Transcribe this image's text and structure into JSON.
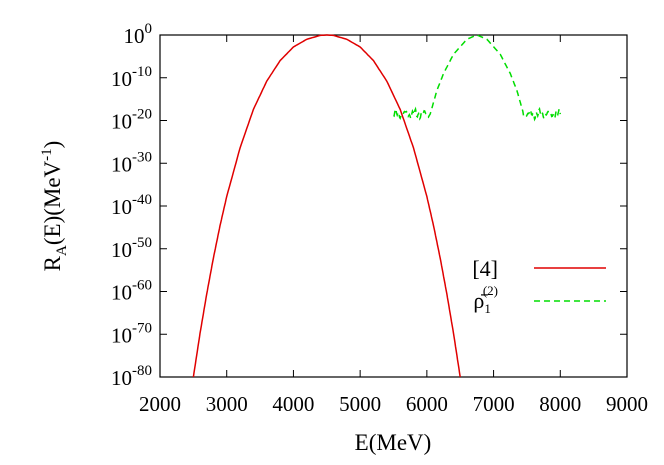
{
  "chart_data": {
    "type": "line",
    "title": "",
    "xlabel": "E(MeV)",
    "ylabel": {
      "main": "R",
      "sub": "A",
      "rest": "(E)(MeV",
      "sup": "-1",
      "close": ")"
    },
    "xlim": [
      2000,
      9000
    ],
    "ylim_log10": [
      -80,
      0
    ],
    "yscale": "log",
    "grid": false,
    "legend_position": "right",
    "x_ticks": [
      "2000",
      "3000",
      "4000",
      "5000",
      "6000",
      "7000",
      "8000",
      "9000"
    ],
    "y_ticks": [
      {
        "base": "10",
        "exp": "0"
      },
      {
        "base": "10",
        "exp": "-10"
      },
      {
        "base": "10",
        "exp": "-20"
      },
      {
        "base": "10",
        "exp": "-30"
      },
      {
        "base": "10",
        "exp": "-40"
      },
      {
        "base": "10",
        "exp": "-50"
      },
      {
        "base": "10",
        "exp": "-60"
      },
      {
        "base": "10",
        "exp": "-70"
      },
      {
        "base": "10",
        "exp": "-80"
      }
    ],
    "series": [
      {
        "name": "[4]",
        "color": "#e00000",
        "style": "solid",
        "points_log10": [
          [
            2500,
            -80
          ],
          [
            2600,
            -69.8
          ],
          [
            2700,
            -60.6
          ],
          [
            2800,
            -52.2
          ],
          [
            2900,
            -44.6
          ],
          [
            3000,
            -37.8
          ],
          [
            3200,
            -26.4
          ],
          [
            3400,
            -17.4
          ],
          [
            3600,
            -10.8
          ],
          [
            3800,
            -6.0
          ],
          [
            4000,
            -2.8
          ],
          [
            4200,
            -1.0
          ],
          [
            4400,
            -0.1
          ],
          [
            4500,
            0
          ],
          [
            4600,
            -0.1
          ],
          [
            4800,
            -1.0
          ],
          [
            5000,
            -2.8
          ],
          [
            5200,
            -6.0
          ],
          [
            5400,
            -10.8
          ],
          [
            5600,
            -17.4
          ],
          [
            5800,
            -26.4
          ],
          [
            6000,
            -37.8
          ],
          [
            6100,
            -44.6
          ],
          [
            6200,
            -52.2
          ],
          [
            6300,
            -60.6
          ],
          [
            6400,
            -69.8
          ],
          [
            6500,
            -80
          ]
        ]
      },
      {
        "name_main": "ρ̄",
        "name_sub": "1",
        "name_sup": "(2)",
        "color": "#00dd00",
        "style": "dashed",
        "points_log10": [
          [
            5500,
            -18.5
          ],
          [
            6050,
            -18.5
          ],
          [
            6150,
            -13.0
          ],
          [
            6250,
            -9.0
          ],
          [
            6400,
            -4.5
          ],
          [
            6600,
            -1.0
          ],
          [
            6750,
            0
          ],
          [
            6900,
            -1.0
          ],
          [
            7100,
            -4.5
          ],
          [
            7250,
            -9.0
          ],
          [
            7350,
            -13.0
          ],
          [
            7450,
            -18.5
          ],
          [
            8000,
            -18.5
          ]
        ],
        "noise_floor_log10": -18.5,
        "noise_ranges": [
          [
            5500,
            6050
          ],
          [
            7450,
            8000
          ]
        ]
      }
    ]
  }
}
